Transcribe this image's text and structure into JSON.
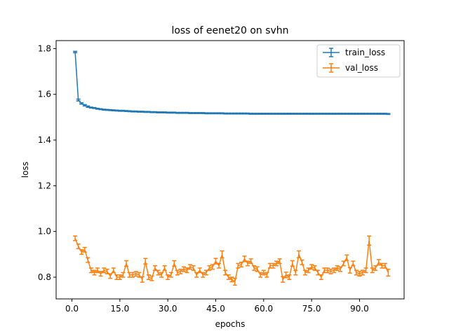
{
  "chart_data": {
    "type": "line",
    "title": "loss of eenet20 on svhn",
    "xlabel": "epochs",
    "ylabel": "loss",
    "xlim": [
      -4.95,
      103.95
    ],
    "ylim": [
      0.705,
      1.835
    ],
    "xticks": [
      0,
      15,
      30,
      45,
      60,
      75,
      90
    ],
    "xtick_labels": [
      "0.0",
      "15.0",
      "30.0",
      "45.0",
      "60.0",
      "75.0",
      "90.0"
    ],
    "yticks": [
      0.8,
      1.0,
      1.2,
      1.4,
      1.6,
      1.8
    ],
    "ytick_labels": [
      "0.8",
      "1.0",
      "1.2",
      "1.4",
      "1.6",
      "1.8"
    ],
    "legend_position": "top-right",
    "grid": false,
    "series": [
      {
        "name": "train_loss",
        "color": "#1f77b4",
        "x": [
          1,
          2,
          3,
          4,
          5,
          6,
          7,
          8,
          9,
          10,
          11,
          12,
          13,
          14,
          15,
          16,
          17,
          18,
          19,
          20,
          21,
          22,
          23,
          24,
          25,
          26,
          27,
          28,
          29,
          30,
          31,
          32,
          33,
          34,
          35,
          36,
          37,
          38,
          39,
          40,
          41,
          42,
          43,
          44,
          45,
          46,
          47,
          48,
          49,
          50,
          51,
          52,
          53,
          54,
          55,
          56,
          57,
          58,
          59,
          60,
          61,
          62,
          63,
          64,
          65,
          66,
          67,
          68,
          69,
          70,
          71,
          72,
          73,
          74,
          75,
          76,
          77,
          78,
          79,
          80,
          81,
          82,
          83,
          84,
          85,
          86,
          87,
          88,
          89,
          90,
          91,
          92,
          93,
          94,
          95,
          96,
          97,
          98,
          99
        ],
        "y": [
          1.785,
          1.575,
          1.56,
          1.552,
          1.546,
          1.542,
          1.54,
          1.537,
          1.535,
          1.533,
          1.532,
          1.531,
          1.53,
          1.529,
          1.528,
          1.528,
          1.527,
          1.526,
          1.525,
          1.525,
          1.524,
          1.524,
          1.523,
          1.523,
          1.522,
          1.522,
          1.521,
          1.521,
          1.521,
          1.52,
          1.52,
          1.52,
          1.519,
          1.519,
          1.519,
          1.519,
          1.518,
          1.518,
          1.518,
          1.518,
          1.518,
          1.517,
          1.517,
          1.517,
          1.517,
          1.517,
          1.517,
          1.516,
          1.516,
          1.516,
          1.516,
          1.516,
          1.516,
          1.516,
          1.516,
          1.515,
          1.515,
          1.515,
          1.515,
          1.515,
          1.515,
          1.515,
          1.515,
          1.515,
          1.515,
          1.515,
          1.515,
          1.515,
          1.515,
          1.515,
          1.515,
          1.515,
          1.515,
          1.515,
          1.515,
          1.515,
          1.515,
          1.515,
          1.515,
          1.515,
          1.515,
          1.515,
          1.515,
          1.515,
          1.515,
          1.515,
          1.515,
          1.515,
          1.515,
          1.515,
          1.515,
          1.515,
          1.515,
          1.515,
          1.515,
          1.515,
          1.515,
          1.515,
          1.514
        ],
        "err": [
          0.003,
          0.004,
          0.003,
          0.003,
          0.003,
          0.002,
          0.002,
          0.002,
          0.002,
          0.002,
          0.002,
          0.002,
          0.002,
          0.002,
          0.002,
          0.002,
          0.002,
          0.002,
          0.002,
          0.002,
          0.002,
          0.002,
          0.002,
          0.002,
          0.002,
          0.002,
          0.002,
          0.002,
          0.002,
          0.002,
          0.002,
          0.002,
          0.002,
          0.002,
          0.002,
          0.002,
          0.002,
          0.002,
          0.002,
          0.002,
          0.002,
          0.002,
          0.002,
          0.002,
          0.002,
          0.002,
          0.002,
          0.002,
          0.002,
          0.002,
          0.002,
          0.002,
          0.002,
          0.002,
          0.002,
          0.002,
          0.002,
          0.002,
          0.002,
          0.002,
          0.002,
          0.002,
          0.002,
          0.002,
          0.002,
          0.002,
          0.002,
          0.002,
          0.002,
          0.002,
          0.002,
          0.002,
          0.002,
          0.002,
          0.002,
          0.002,
          0.002,
          0.002,
          0.002,
          0.002,
          0.002,
          0.002,
          0.002,
          0.002,
          0.002,
          0.002,
          0.002,
          0.002,
          0.002,
          0.002,
          0.002,
          0.002,
          0.002,
          0.002,
          0.002,
          0.002,
          0.002,
          0.002,
          0.002
        ]
      },
      {
        "name": "val_loss",
        "color": "#ff7f0e",
        "x": [
          1,
          2,
          3,
          4,
          5,
          6,
          7,
          8,
          9,
          10,
          11,
          12,
          13,
          14,
          15,
          16,
          17,
          18,
          19,
          20,
          21,
          22,
          23,
          24,
          25,
          26,
          27,
          28,
          29,
          30,
          31,
          32,
          33,
          34,
          35,
          36,
          37,
          38,
          39,
          40,
          41,
          42,
          43,
          44,
          45,
          46,
          47,
          48,
          49,
          50,
          51,
          52,
          53,
          54,
          55,
          56,
          57,
          58,
          59,
          60,
          61,
          62,
          63,
          64,
          65,
          66,
          67,
          68,
          69,
          70,
          71,
          72,
          73,
          74,
          75,
          76,
          77,
          78,
          79,
          80,
          81,
          82,
          83,
          84,
          85,
          86,
          87,
          88,
          89,
          90,
          91,
          92,
          93,
          94,
          95,
          96,
          97,
          98,
          99
        ],
        "y": [
          0.97,
          0.935,
          0.91,
          0.92,
          0.875,
          0.83,
          0.82,
          0.83,
          0.815,
          0.83,
          0.825,
          0.805,
          0.83,
          0.8,
          0.8,
          0.81,
          0.86,
          0.81,
          0.81,
          0.815,
          0.81,
          0.79,
          0.87,
          0.8,
          0.795,
          0.84,
          0.82,
          0.81,
          0.84,
          0.8,
          0.81,
          0.86,
          0.82,
          0.825,
          0.835,
          0.83,
          0.845,
          0.84,
          0.81,
          0.83,
          0.81,
          0.82,
          0.84,
          0.845,
          0.87,
          0.85,
          0.9,
          0.82,
          0.8,
          0.79,
          0.78,
          0.85,
          0.855,
          0.88,
          0.86,
          0.87,
          0.84,
          0.835,
          0.81,
          0.82,
          0.81,
          0.85,
          0.85,
          0.86,
          0.87,
          0.79,
          0.81,
          0.8,
          0.86,
          0.82,
          0.9,
          0.865,
          0.82,
          0.83,
          0.845,
          0.84,
          0.82,
          0.8,
          0.83,
          0.83,
          0.825,
          0.83,
          0.84,
          0.835,
          0.86,
          0.885,
          0.83,
          0.86,
          0.82,
          0.815,
          0.82,
          0.83,
          0.96,
          0.83,
          0.84,
          0.865,
          0.85,
          0.85,
          0.82
        ],
        "err": [
          0.01,
          0.01,
          0.01,
          0.01,
          0.01,
          0.01,
          0.01,
          0.01,
          0.01,
          0.01,
          0.01,
          0.01,
          0.01,
          0.01,
          0.01,
          0.01,
          0.012,
          0.01,
          0.01,
          0.01,
          0.01,
          0.012,
          0.012,
          0.01,
          0.01,
          0.01,
          0.01,
          0.01,
          0.01,
          0.01,
          0.01,
          0.012,
          0.01,
          0.01,
          0.01,
          0.01,
          0.01,
          0.01,
          0.01,
          0.01,
          0.01,
          0.01,
          0.01,
          0.01,
          0.012,
          0.01,
          0.015,
          0.01,
          0.01,
          0.01,
          0.015,
          0.01,
          0.01,
          0.012,
          0.01,
          0.01,
          0.01,
          0.01,
          0.01,
          0.01,
          0.01,
          0.01,
          0.01,
          0.01,
          0.01,
          0.012,
          0.012,
          0.01,
          0.012,
          0.01,
          0.015,
          0.01,
          0.01,
          0.01,
          0.01,
          0.01,
          0.01,
          0.01,
          0.01,
          0.01,
          0.01,
          0.01,
          0.01,
          0.01,
          0.01,
          0.012,
          0.012,
          0.01,
          0.01,
          0.01,
          0.01,
          0.01,
          0.02,
          0.01,
          0.01,
          0.012,
          0.01,
          0.01,
          0.015
        ]
      }
    ]
  }
}
